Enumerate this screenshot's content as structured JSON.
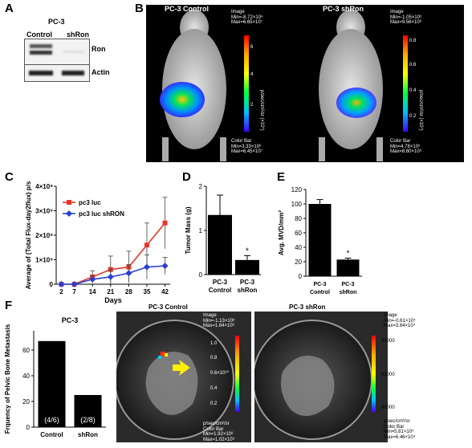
{
  "panels": {
    "A": "A",
    "B": "B",
    "C": "C",
    "D": "D",
    "E": "E",
    "F": "F"
  },
  "blot": {
    "cell_line": "PC-3",
    "lanes": [
      "Control",
      "shRon"
    ],
    "bands": [
      "Ron",
      "Actin"
    ]
  },
  "imaging_b": {
    "left_title": "PC-3 Control",
    "right_title": "PC-3 shRon",
    "left_image_header": "Image",
    "left_image_min": "Min=-8.72×10⁴",
    "left_image_max": "Max=6.65×10⁷",
    "left_scale_ticks": [
      "6",
      "4",
      "2"
    ],
    "left_unit": "p/sec/cm²/sr (×10⁷)",
    "left_colorbar_header": "Color Bar",
    "left_colorbar_min": "Min=3.33×10⁶",
    "left_colorbar_max": "Max=6.45×10⁷",
    "right_image_header": "Image",
    "right_image_min": "Min=-1.05×10⁵",
    "right_image_max": "Max=9.56×10⁶",
    "right_scale_ticks": [
      "0.8",
      "0.6",
      "0.4",
      "0.2"
    ],
    "right_unit": "p/sec/cm²/sr (×10⁷)",
    "right_colorbar_header": "Color Bar",
    "right_colorbar_min": "Min=4.78×10⁵",
    "right_colorbar_max": "Max=8.60×10⁶"
  },
  "panel_f": {
    "left_title": "PC-3 Control",
    "right_title": "PC-3 shRon",
    "left_image_header": "Image",
    "left_image_min": "Min=-1.13×10⁸",
    "left_image_max": "Max=1.64×10⁹",
    "left_scale_ticks": [
      "1.0",
      "0.8",
      "0.6×10¹⁰",
      "0.4",
      "0.2"
    ],
    "left_unit": "p/sec/cm²/sr",
    "left_colorbar_header": "Color Bar",
    "left_colorbar_min": "Min=1.92×10⁸",
    "left_colorbar_max": "Max=1.02×10⁹",
    "right_image_header": "Image",
    "right_image_min": "Min=-0.61×10⁴",
    "right_image_max": "Max=3.64×10⁴",
    "right_scale_ticks": [
      "64000",
      "62000",
      "60000"
    ],
    "right_unit": "p/sec/cm²/sr",
    "right_colorbar_header": "Color Bar",
    "right_colorbar_min": "Min=5.81×10⁴",
    "right_colorbar_max": "Max=6.46×10⁴"
  },
  "chart_data": [
    {
      "panel": "C",
      "type": "line",
      "x": [
        2,
        7,
        14,
        21,
        28,
        35,
        42
      ],
      "xlabel": "Days",
      "ylabel": "Average of (Total Flux-day2flux) p/s",
      "ytick_labels": [
        "0",
        "1×10⁹",
        "2×10⁹",
        "3×10⁹",
        "4×10⁹"
      ],
      "ylim": [
        0,
        4000000000
      ],
      "legend_position": "top-left",
      "series": [
        {
          "name": "pc3 luc",
          "color": "#e8352a",
          "marker": "square",
          "values": [
            0,
            0,
            300000000,
            600000000,
            700000000,
            1600000000,
            2500000000
          ],
          "errors": [
            0,
            0,
            250000000,
            550000000,
            650000000,
            900000000,
            1050000000
          ]
        },
        {
          "name": "pc3 luc shRON",
          "color": "#2a3fd0",
          "marker": "diamond",
          "values": [
            0,
            0,
            200000000,
            300000000,
            450000000,
            700000000,
            750000000
          ],
          "errors": [
            0,
            0,
            150000000,
            300000000,
            350000000,
            500000000,
            350000000
          ]
        }
      ]
    },
    {
      "panel": "D",
      "type": "bar",
      "categories": [
        "PC-3 Control",
        "PC-3 shRon"
      ],
      "values": [
        1.35,
        0.33
      ],
      "errors": [
        0.45,
        0.1
      ],
      "ylabel": "Tumor Mass (g)",
      "ytick_labels": [
        "0",
        "1",
        "2"
      ],
      "ylim": [
        0,
        2
      ],
      "annotations": [
        "*"
      ]
    },
    {
      "panel": "E",
      "type": "bar",
      "categories": [
        "PC-3 Control",
        "PC-3 shRon"
      ],
      "values": [
        100,
        23
      ],
      "errors": [
        6,
        2
      ],
      "ylabel": "Avg. MVD/mm²",
      "ytick_labels": [
        "0",
        "20",
        "40",
        "60",
        "80",
        "100",
        "120"
      ],
      "ylim": [
        0,
        120
      ],
      "annotations": [
        "*"
      ]
    },
    {
      "panel": "F",
      "type": "bar",
      "title": "PC-3",
      "categories": [
        "Control",
        "shRon"
      ],
      "values": [
        67,
        25
      ],
      "bar_labels": [
        "(4/6)",
        "(2/8)"
      ],
      "ylabel": "Frquency of Pelvic Bone Metastasis",
      "ytick_labels": [
        "0",
        "20",
        "40",
        "60"
      ],
      "ylim": [
        0,
        75
      ]
    }
  ]
}
